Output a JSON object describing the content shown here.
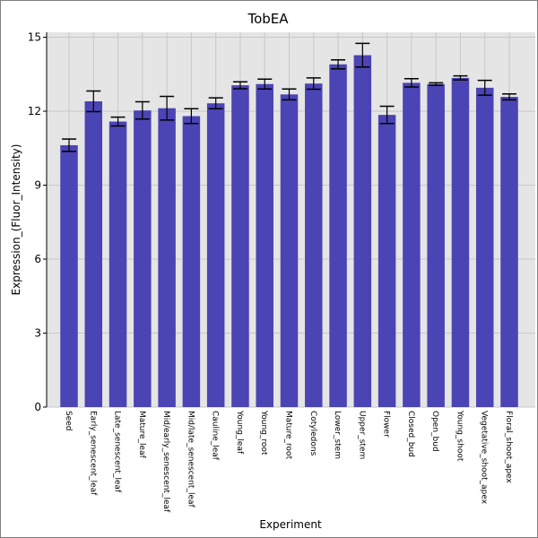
{
  "chart_data": {
    "type": "bar",
    "title": "TobEA",
    "xlabel": "Experiment",
    "ylabel": "Expression_(Fluor_Intensity)",
    "ylim": [
      0,
      15.2
    ],
    "yticks": [
      0,
      3,
      6,
      9,
      12,
      15
    ],
    "grid": true,
    "categories": [
      "Seed",
      "Early_senescent_leaf",
      "Late_senescent_leaf",
      "Mature_leaf",
      "Mid/early_senescent_leaf",
      "Mid/late_senescent_leaf",
      "Cauline_leaf",
      "Young_leaf",
      "Young_root",
      "Mature_root",
      "Cotyledons",
      "Lower_stem",
      "Upper_stem",
      "Flower",
      "Closed_bud",
      "Open_bud",
      "Young_shoot",
      "Vegetative_shoot_apex",
      "Floral_shoot_apex"
    ],
    "values": [
      10.62,
      12.4,
      11.58,
      12.03,
      12.12,
      11.8,
      12.32,
      13.05,
      13.1,
      12.68,
      13.12,
      13.9,
      14.27,
      11.85,
      13.15,
      13.1,
      13.35,
      12.95,
      12.58
    ],
    "errors": [
      0.25,
      0.42,
      0.18,
      0.35,
      0.48,
      0.3,
      0.22,
      0.14,
      0.2,
      0.22,
      0.23,
      0.18,
      0.48,
      0.35,
      0.17,
      0.05,
      0.08,
      0.3,
      0.12
    ],
    "bar_color": "#4b44b4",
    "plot_background": "#e5e5e5",
    "grid_color": "#c8c8c8"
  }
}
